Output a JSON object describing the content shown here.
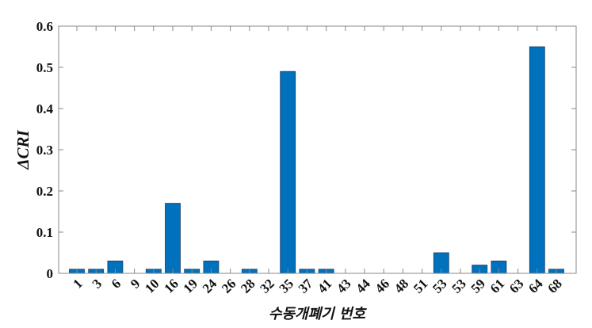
{
  "chart_data": {
    "type": "bar",
    "title": "",
    "xlabel": "수동개폐기 번호",
    "ylabel": "ΔCRI",
    "ylim": [
      0,
      0.6
    ],
    "yticks": [
      "0",
      "0.1",
      "0.2",
      "0.3",
      "0.4",
      "0.5",
      "0.6"
    ],
    "grid": false,
    "bar_color": "#0072BD",
    "categories": [
      "1",
      "3",
      "6",
      "9",
      "10",
      "16",
      "19",
      "24",
      "26",
      "28",
      "32",
      "35",
      "37",
      "41",
      "43",
      "44",
      "46",
      "48",
      "51",
      "53",
      "53",
      "59",
      "61",
      "63",
      "64",
      "68"
    ],
    "values": [
      0.01,
      0.01,
      0.03,
      0,
      0.01,
      0.17,
      0.01,
      0.03,
      0,
      0.01,
      0,
      0.49,
      0.01,
      0.01,
      0,
      0,
      0,
      0,
      0,
      0.05,
      0,
      0.02,
      0.03,
      0,
      0.55,
      0.01
    ]
  }
}
